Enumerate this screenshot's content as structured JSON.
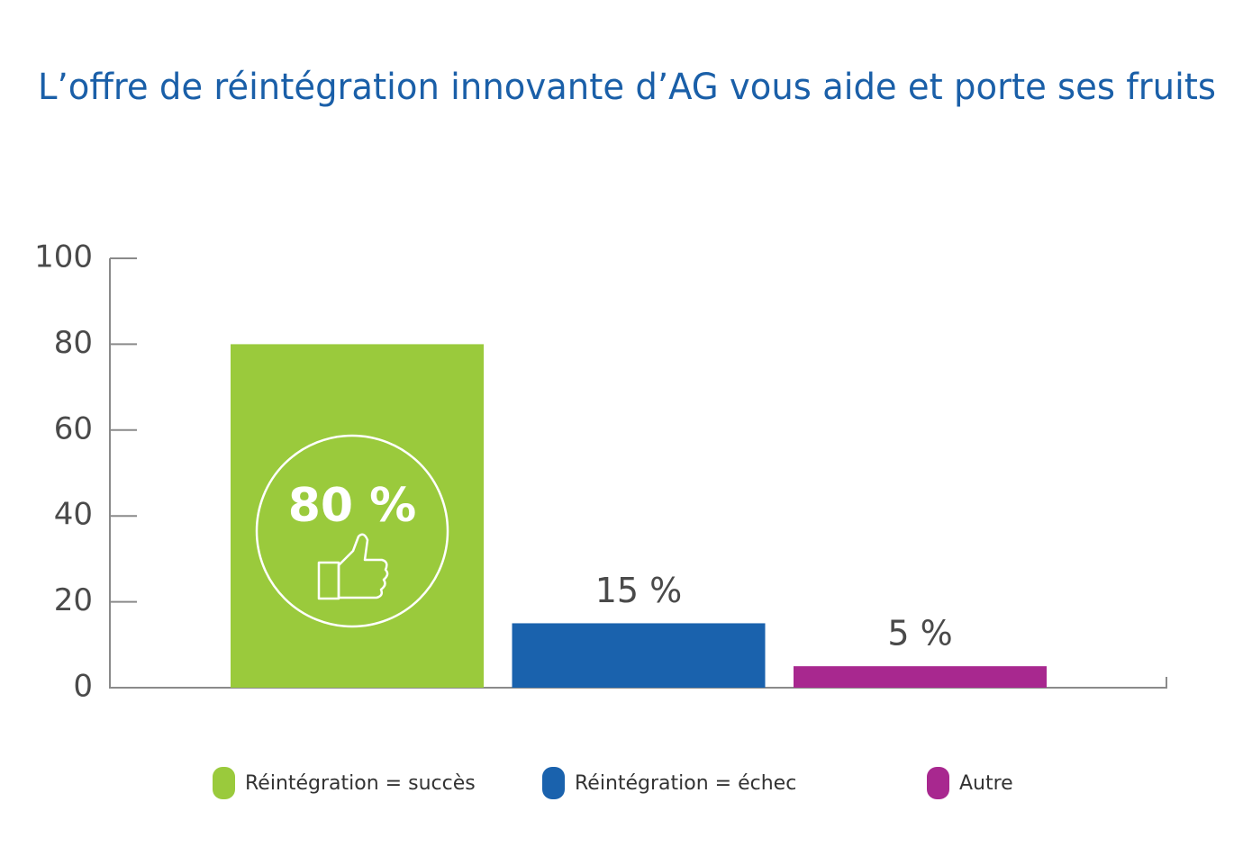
{
  "chart_data": {
    "type": "bar",
    "title": "L’offre de réintégration innovante d’AG vous aide et porte ses fruits",
    "series": [
      {
        "name": "Réintégration = succès",
        "color": "#9aca3c",
        "values": [
          80
        ],
        "value_labels": [
          "80 %"
        ]
      },
      {
        "name": "Réintégration = échec",
        "color": "#1a62ad",
        "values": [
          15
        ],
        "value_labels": [
          "15 %"
        ]
      },
      {
        "name": "Autre",
        "color": "#a8288f",
        "values": [
          5
        ],
        "value_labels": [
          "5 %"
        ]
      }
    ],
    "ylim": [
      0,
      100
    ],
    "yticks": [
      0,
      20,
      40,
      60,
      80,
      100
    ],
    "grid": false,
    "legend": "bottom"
  }
}
